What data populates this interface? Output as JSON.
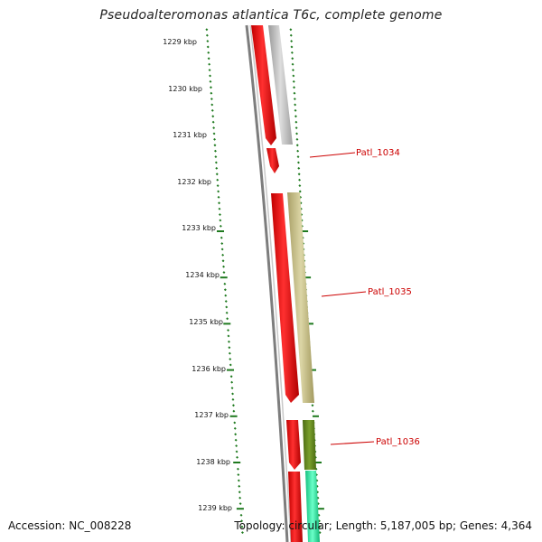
{
  "title": "Pseudoalteromonas atlantica T6c, complete genome",
  "accession": "Accession: NC_008228",
  "summary": "Topology: circular; Length: 5,187,005 bp; Genes: 4,364",
  "scale_labels": [
    "1229 kbp",
    "1230 kbp",
    "1231 kbp",
    "1232 kbp",
    "1233 kbp",
    "1234 kbp",
    "1235 kbp",
    "1236 kbp",
    "1237 kbp",
    "1238 kbp",
    "1239 kbp"
  ],
  "gene_labels": [
    "Patl_1034",
    "Patl_1035",
    "Patl_1036"
  ],
  "colors": {
    "forward_gene": "#ff1a1a",
    "gray_feature": "#b8b8b8",
    "khaki_feature": "#c7c088",
    "olive_feature": "#6b8e23",
    "green_feature": "#2ee6a0",
    "tick": "#1f7a1f",
    "label": "#cc0000",
    "backbone": "#8a8a8a"
  }
}
